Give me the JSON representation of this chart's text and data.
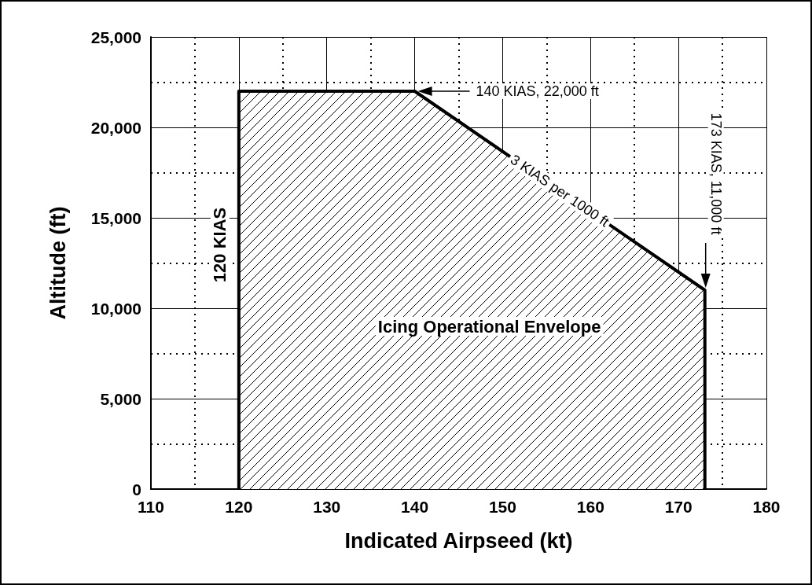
{
  "chart_data": {
    "type": "area",
    "xlabel": "Indicated Airpseed (kt)",
    "ylabel": "Altitude (ft)",
    "x": [
      120,
      120,
      140,
      173,
      173
    ],
    "series": [
      {
        "color": "#000000",
        "values": [
          0,
          22000,
          22000,
          11000,
          0
        ]
      }
    ],
    "xlim": [
      110,
      180
    ],
    "xticks": [
      110,
      120,
      130,
      140,
      150,
      160,
      170,
      180
    ],
    "ylim": [
      0,
      25000
    ],
    "yticks": [
      0,
      {
        "value": 5000,
        "label": "5,000"
      },
      {
        "value": 10000,
        "label": "10,000"
      },
      {
        "value": 15000,
        "label": "15,000"
      },
      {
        "value": 20000,
        "label": "20,000"
      },
      {
        "value": 25000,
        "label": "25,000"
      }
    ],
    "grid": true,
    "marker": "none",
    "line_style": "solid",
    "annotations": [
      "140 KIAS, 22,000 ft",
      {
        "text": "3 KIAS per 1000 ft",
        "x": 156.5,
        "y": 16500
      },
      "173 KIAS, 11,000 ft",
      {
        "text": "120 KIAS",
        "x": 120,
        "y": 13500
      },
      {
        "text": "Icing Operational Envelope"
      }
    ]
  }
}
